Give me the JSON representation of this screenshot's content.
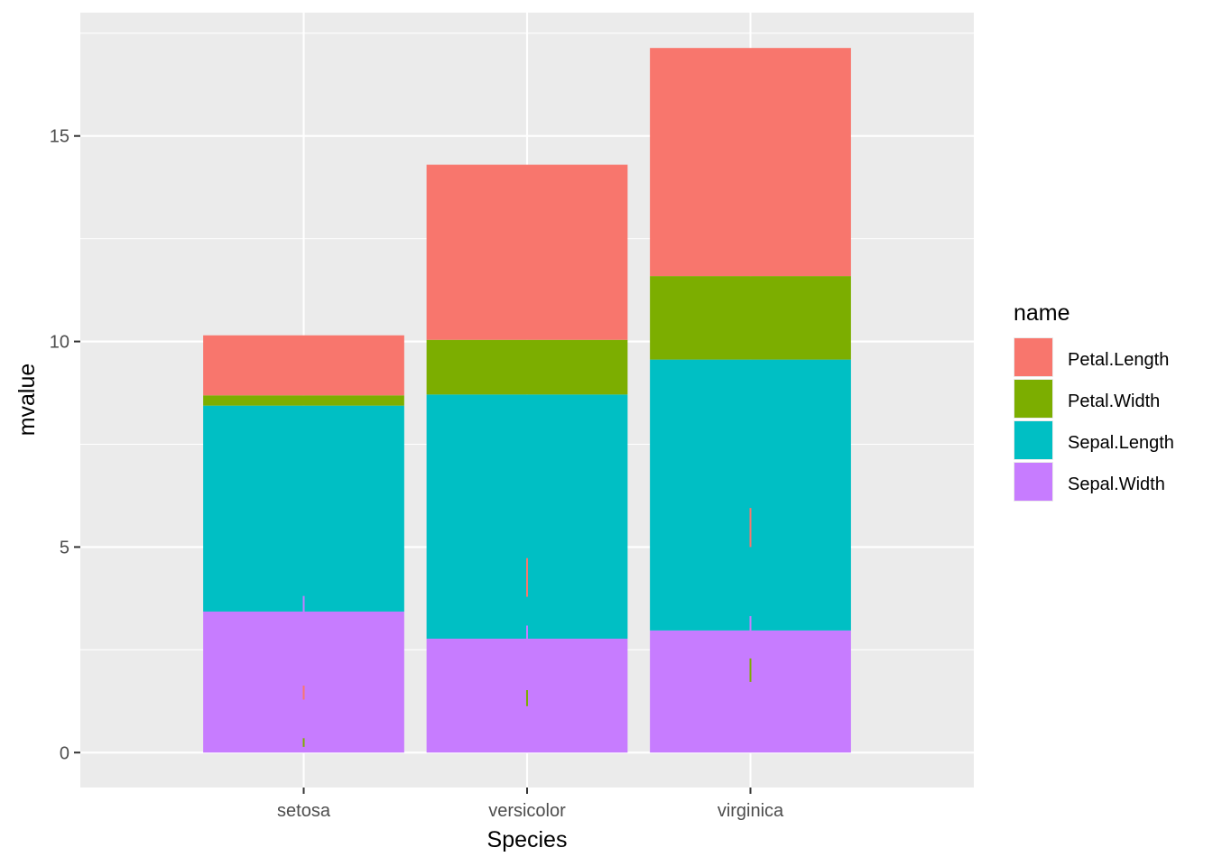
{
  "chart_data": {
    "type": "bar",
    "stacked": true,
    "categories": [
      "setosa",
      "versicolor",
      "virginica"
    ],
    "series": [
      {
        "name": "Sepal.Width",
        "color": "#C77CFF",
        "values": [
          3.43,
          2.77,
          2.97
        ]
      },
      {
        "name": "Sepal.Length",
        "color": "#00BFC4",
        "values": [
          5.01,
          5.94,
          6.59
        ]
      },
      {
        "name": "Petal.Width",
        "color": "#7CAE00",
        "values": [
          0.25,
          1.33,
          2.03
        ]
      },
      {
        "name": "Petal.Length",
        "color": "#F8766D",
        "values": [
          1.46,
          4.26,
          5.55
        ]
      }
    ],
    "error_bars": [
      {
        "category": "setosa",
        "series": "Sepal.Width",
        "low": 3.05,
        "high": 3.81,
        "color": "#C77CFF"
      },
      {
        "category": "setosa",
        "series": "Petal.Length",
        "low": 1.29,
        "high": 1.63,
        "color": "#F8766D"
      },
      {
        "category": "setosa",
        "series": "Petal.Width",
        "low": 0.14,
        "high": 0.35,
        "color": "#7CAE00"
      },
      {
        "category": "versicolor",
        "series": "Petal.Length",
        "low": 3.79,
        "high": 4.73,
        "color": "#F8766D"
      },
      {
        "category": "versicolor",
        "series": "Sepal.Width",
        "low": 2.46,
        "high": 3.09,
        "color": "#C77CFF"
      },
      {
        "category": "versicolor",
        "series": "Petal.Width",
        "low": 1.13,
        "high": 1.52,
        "color": "#7CAE00"
      },
      {
        "category": "virginica",
        "series": "Petal.Length",
        "low": 5.0,
        "high": 5.95,
        "color": "#F8766D"
      },
      {
        "category": "virginica",
        "series": "Sepal.Width",
        "low": 2.65,
        "high": 3.32,
        "color": "#C77CFF"
      },
      {
        "category": "virginica",
        "series": "Petal.Width",
        "low": 1.72,
        "high": 2.29,
        "color": "#7CAE00"
      }
    ],
    "xlabel": "Species",
    "ylabel": "mvalue",
    "ylim": [
      -0.85,
      18.0
    ],
    "yticks": [
      0,
      5,
      10,
      15
    ],
    "grid": true,
    "legend": {
      "title": "name",
      "position": "right",
      "entries": [
        {
          "label": "Petal.Length",
          "color": "#F8766D"
        },
        {
          "label": "Petal.Width",
          "color": "#7CAE00"
        },
        {
          "label": "Sepal.Length",
          "color": "#00BFC4"
        },
        {
          "label": "Sepal.Width",
          "color": "#C77CFF"
        }
      ]
    },
    "colors": {
      "panel_background": "#EBEBEB",
      "grid_major": "#FFFFFF",
      "tick_text": "#4D4D4D"
    }
  }
}
